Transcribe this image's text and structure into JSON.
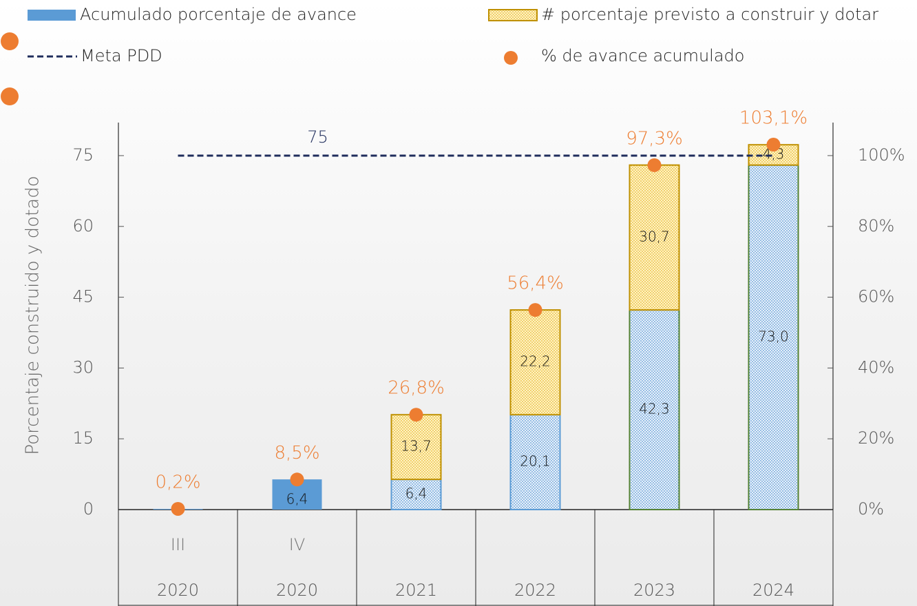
{
  "chart_data": {
    "type": "bar",
    "stacked": true,
    "categories": [
      "III",
      "IV",
      null,
      null,
      null,
      null
    ],
    "years": [
      "2020",
      "2020",
      "2021",
      "2022",
      "2023",
      "2024"
    ],
    "ylabel": "Porcentaje construido y dotado",
    "ylim": [
      0,
      82
    ],
    "yticks": [
      0,
      15,
      30,
      45,
      60,
      75
    ],
    "y2lim": [
      0,
      109.33
    ],
    "y2ticks": [
      {
        "value": 0,
        "label": "0%"
      },
      {
        "value": 20,
        "label": "20%"
      },
      {
        "value": 40,
        "label": "40%"
      },
      {
        "value": 60,
        "label": "60%"
      },
      {
        "value": 80,
        "label": "80%"
      },
      {
        "value": 100,
        "label": "100%"
      }
    ],
    "hatched": [
      false,
      false,
      true,
      true,
      true,
      true
    ],
    "series": [
      {
        "name": "Acumulado porcentaje de avance",
        "color": "#5b9bd5",
        "values": [
          0.15,
          6.4,
          6.4,
          20.1,
          42.3,
          73.0
        ],
        "value_labels": [
          null,
          "6,4",
          "6,4",
          "20,1",
          "42,3",
          "73,0"
        ]
      },
      {
        "name": "# porcentaje previsto a construir y dotar",
        "color": "#ffd966",
        "values": [
          null,
          null,
          13.7,
          22.2,
          30.7,
          4.3
        ],
        "value_labels": [
          null,
          null,
          "13,7",
          "22,2",
          "30,7",
          "4,3"
        ]
      },
      {
        "name": "% de avance acumulado",
        "type": "scatter",
        "axis": "y2",
        "color": "#ed7d31",
        "values": [
          0.2,
          8.5,
          26.8,
          56.4,
          97.3,
          103.1
        ],
        "value_labels": [
          "0,2%",
          "8,5%",
          "26,8%",
          "56,4%",
          "97,3%",
          "103,1%"
        ]
      }
    ],
    "meta": {
      "name": "Meta PDD",
      "value": 75,
      "color": "#1f2d5c"
    }
  }
}
